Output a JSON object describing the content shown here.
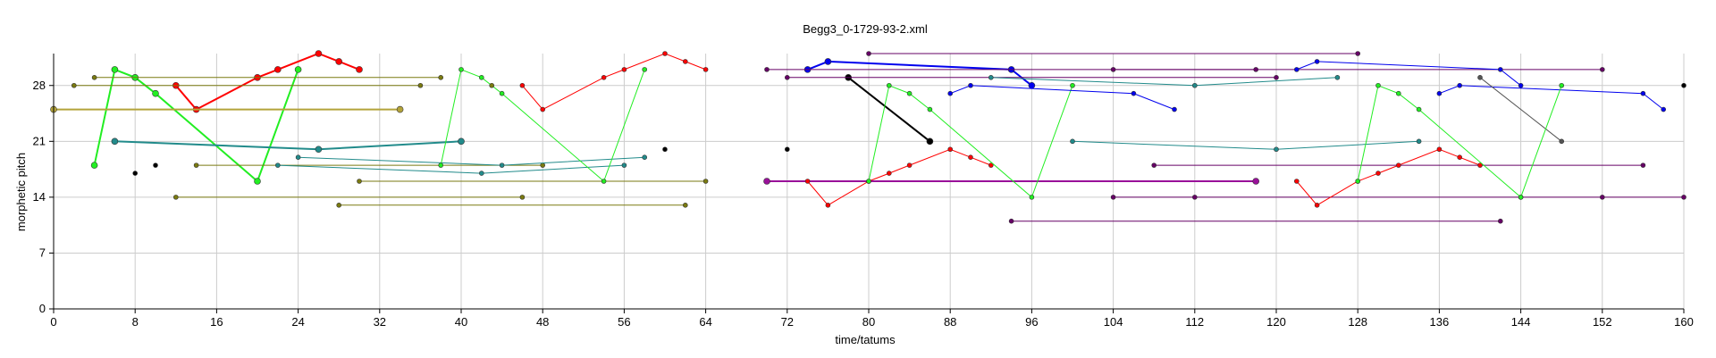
{
  "chart_data": {
    "type": "scatter",
    "title": "Begg3_0-1729-93-2.xml",
    "xlabel": "time/tatums",
    "ylabel": "morphetic pitch",
    "xlim": [
      0,
      160
    ],
    "ylim": [
      0,
      32
    ],
    "xticks": [
      0,
      8,
      16,
      24,
      32,
      40,
      48,
      56,
      64,
      72,
      80,
      88,
      96,
      104,
      112,
      120,
      128,
      136,
      144,
      152,
      160
    ],
    "yticks": [
      0,
      7,
      14,
      21,
      28
    ],
    "grid": true,
    "series": [
      {
        "color": "#ff0000",
        "linewidth": 2,
        "markersize": 6,
        "points": [
          [
            12,
            28
          ],
          [
            14,
            25
          ],
          [
            20,
            29
          ],
          [
            22,
            30
          ],
          [
            26,
            32
          ],
          [
            28,
            31
          ],
          [
            30,
            30
          ]
        ]
      },
      {
        "color": "#22ee22",
        "linewidth": 2,
        "markersize": 6,
        "points": [
          [
            4,
            18
          ],
          [
            6,
            30
          ],
          [
            8,
            29
          ],
          [
            10,
            27
          ],
          [
            20,
            16
          ],
          [
            24,
            30
          ]
        ]
      },
      {
        "color": "#228b8b",
        "linewidth": 2,
        "markersize": 6,
        "points": [
          [
            6,
            21
          ],
          [
            26,
            20
          ],
          [
            40,
            21
          ]
        ]
      },
      {
        "color": "#b3a33a",
        "linewidth": 2,
        "markersize": 6,
        "points": [
          [
            0,
            25
          ],
          [
            34,
            25
          ]
        ]
      },
      {
        "color": "#7a7a10",
        "linewidth": 1,
        "markersize": 4,
        "points": [
          [
            2,
            28
          ],
          [
            36,
            28
          ]
        ]
      },
      {
        "color": "#7a7a10",
        "linewidth": 1,
        "markersize": 4,
        "points": [
          [
            4,
            29
          ],
          [
            38,
            29
          ]
        ]
      },
      {
        "color": "#7a7a10",
        "linewidth": 1,
        "markersize": 4,
        "points": [
          [
            14,
            18
          ],
          [
            48,
            18
          ]
        ]
      },
      {
        "color": "#7a7a10",
        "linewidth": 1,
        "markersize": 4,
        "points": [
          [
            12,
            14
          ],
          [
            46,
            14
          ]
        ]
      },
      {
        "color": "#7a7a10",
        "linewidth": 1,
        "markersize": 4,
        "points": [
          [
            30,
            16
          ],
          [
            64,
            16
          ]
        ]
      },
      {
        "color": "#7a7a10",
        "linewidth": 1,
        "markersize": 4,
        "points": [
          [
            28,
            13
          ],
          [
            62,
            13
          ]
        ]
      },
      {
        "color": "#000000",
        "linewidth": 0,
        "markersize": 4,
        "points": [
          [
            8,
            17
          ]
        ]
      },
      {
        "color": "#000000",
        "linewidth": 0,
        "markersize": 4,
        "points": [
          [
            10,
            18
          ]
        ]
      },
      {
        "color": "#000000",
        "linewidth": 0,
        "markersize": 4,
        "points": [
          [
            60,
            20
          ]
        ]
      },
      {
        "color": "#228b8b",
        "linewidth": 1,
        "markersize": 4,
        "points": [
          [
            22,
            18
          ],
          [
            42,
            17
          ],
          [
            56,
            18
          ]
        ]
      },
      {
        "color": "#228b8b",
        "linewidth": 1,
        "markersize": 4,
        "points": [
          [
            24,
            19
          ],
          [
            44,
            18
          ],
          [
            58,
            19
          ]
        ]
      },
      {
        "color": "#ff0000",
        "linewidth": 1,
        "markersize": 4,
        "points": [
          [
            46,
            28
          ],
          [
            48,
            25
          ],
          [
            54,
            29
          ],
          [
            56,
            30
          ],
          [
            60,
            32
          ],
          [
            62,
            31
          ],
          [
            64,
            30
          ]
        ]
      },
      {
        "color": "#22ee22",
        "linewidth": 1,
        "markersize": 4,
        "points": [
          [
            38,
            18
          ],
          [
            40,
            30
          ],
          [
            42,
            29
          ],
          [
            44,
            27
          ],
          [
            54,
            16
          ],
          [
            58,
            30
          ]
        ]
      },
      {
        "color": "#7a7a10",
        "linewidth": 1,
        "markersize": 4,
        "points": [
          [
            43,
            28
          ]
        ]
      },
      {
        "color": "#0000ee",
        "linewidth": 2,
        "markersize": 6,
        "points": [
          [
            74,
            30
          ],
          [
            76,
            31
          ],
          [
            94,
            30
          ],
          [
            96,
            28
          ]
        ]
      },
      {
        "color": "#000000",
        "linewidth": 2,
        "markersize": 6,
        "points": [
          [
            78,
            29
          ],
          [
            86,
            21
          ]
        ]
      },
      {
        "color": "#991199",
        "linewidth": 2,
        "markersize": 6,
        "points": [
          [
            70,
            16
          ],
          [
            118,
            16
          ]
        ]
      },
      {
        "color": "#660066",
        "linewidth": 1,
        "markersize": 4,
        "points": [
          [
            80,
            32
          ],
          [
            128,
            32
          ]
        ]
      },
      {
        "color": "#660066",
        "linewidth": 1,
        "markersize": 4,
        "points": [
          [
            70,
            30
          ],
          [
            118,
            30
          ]
        ]
      },
      {
        "color": "#660066",
        "linewidth": 1,
        "markersize": 4,
        "points": [
          [
            72,
            29
          ],
          [
            120,
            29
          ]
        ]
      },
      {
        "color": "#660066",
        "linewidth": 1,
        "markersize": 4,
        "points": [
          [
            104,
            30
          ],
          [
            152,
            30
          ]
        ]
      },
      {
        "color": "#660066",
        "linewidth": 1,
        "markersize": 4,
        "points": [
          [
            108,
            18
          ],
          [
            156,
            18
          ]
        ]
      },
      {
        "color": "#660066",
        "linewidth": 1,
        "markersize": 4,
        "points": [
          [
            104,
            14
          ],
          [
            112,
            14
          ],
          [
            144,
            14
          ],
          [
            152,
            14
          ],
          [
            160,
            14
          ]
        ]
      },
      {
        "color": "#660066",
        "linewidth": 1,
        "markersize": 4,
        "points": [
          [
            94,
            11
          ],
          [
            142,
            11
          ]
        ]
      },
      {
        "color": "#000000",
        "linewidth": 0,
        "markersize": 4,
        "points": [
          [
            72,
            20
          ]
        ]
      },
      {
        "color": "#000000",
        "linewidth": 0,
        "markersize": 4,
        "points": [
          [
            160,
            28
          ]
        ]
      },
      {
        "color": "#ff0000",
        "linewidth": 1,
        "markersize": 4,
        "points": [
          [
            74,
            16
          ],
          [
            76,
            13
          ],
          [
            80,
            16
          ],
          [
            82,
            17
          ],
          [
            84,
            18
          ],
          [
            88,
            20
          ],
          [
            90,
            19
          ],
          [
            92,
            18
          ]
        ]
      },
      {
        "color": "#22ee22",
        "linewidth": 1,
        "markersize": 4,
        "points": [
          [
            80,
            16
          ],
          [
            82,
            28
          ],
          [
            84,
            27
          ],
          [
            86,
            25
          ],
          [
            96,
            14
          ],
          [
            100,
            28
          ]
        ]
      },
      {
        "color": "#0000ee",
        "linewidth": 1,
        "markersize": 4,
        "points": [
          [
            88,
            27
          ],
          [
            90,
            28
          ],
          [
            106,
            27
          ],
          [
            110,
            25
          ]
        ]
      },
      {
        "color": "#228b8b",
        "linewidth": 1,
        "markersize": 4,
        "points": [
          [
            92,
            29
          ],
          [
            112,
            28
          ],
          [
            126,
            29
          ]
        ]
      },
      {
        "color": "#228b8b",
        "linewidth": 1,
        "markersize": 4,
        "points": [
          [
            100,
            21
          ],
          [
            120,
            20
          ],
          [
            134,
            21
          ]
        ]
      },
      {
        "color": "#0000ee",
        "linewidth": 1,
        "markersize": 4,
        "points": [
          [
            122,
            30
          ],
          [
            124,
            31
          ],
          [
            142,
            30
          ],
          [
            144,
            28
          ]
        ]
      },
      {
        "color": "#0000ee",
        "linewidth": 1,
        "markersize": 4,
        "points": [
          [
            136,
            27
          ],
          [
            138,
            28
          ],
          [
            156,
            27
          ],
          [
            158,
            25
          ]
        ]
      },
      {
        "color": "#555555",
        "linewidth": 1,
        "markersize": 4,
        "points": [
          [
            140,
            29
          ],
          [
            148,
            21
          ]
        ]
      },
      {
        "color": "#ff0000",
        "linewidth": 1,
        "markersize": 4,
        "points": [
          [
            122,
            16
          ],
          [
            124,
            13
          ],
          [
            128,
            16
          ],
          [
            130,
            17
          ],
          [
            132,
            18
          ],
          [
            136,
            20
          ],
          [
            138,
            19
          ],
          [
            140,
            18
          ]
        ]
      },
      {
        "color": "#22ee22",
        "linewidth": 1,
        "markersize": 4,
        "points": [
          [
            128,
            16
          ],
          [
            130,
            28
          ],
          [
            132,
            27
          ],
          [
            134,
            25
          ],
          [
            144,
            14
          ],
          [
            148,
            28
          ]
        ]
      }
    ]
  }
}
